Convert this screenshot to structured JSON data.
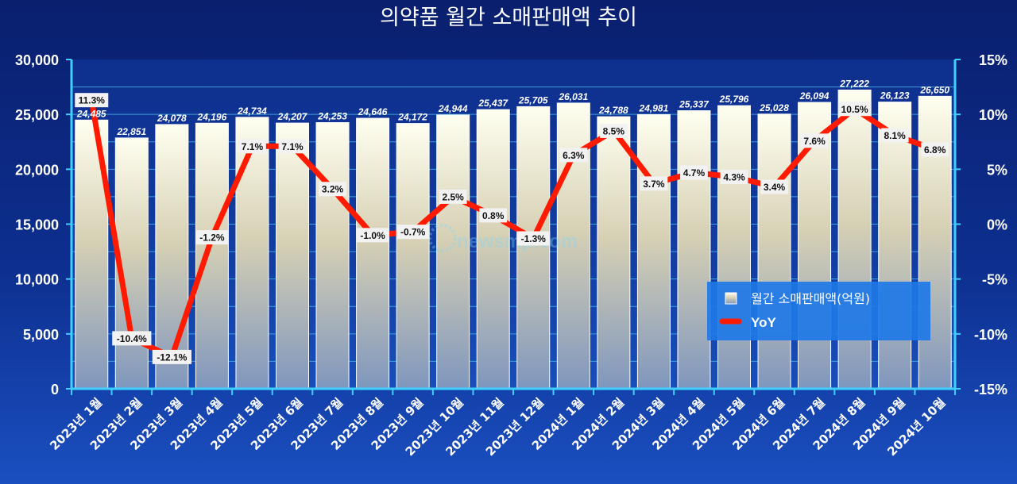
{
  "chart_data": {
    "type": "bar",
    "title": "의약품 월간 소매판매액 추이",
    "categories": [
      "2023년 1월",
      "2023년 2월",
      "2023년 3월",
      "2023년 4월",
      "2023년 5월",
      "2023년 6월",
      "2023년 7월",
      "2023년 8월",
      "2023년 9월",
      "2023년 10월",
      "2023년 11월",
      "2023년 12월",
      "2024년 1월",
      "2024년 2월",
      "2024년 3월",
      "2024년 4월",
      "2024년 5월",
      "2024년 6월",
      "2024년 7월",
      "2024년 8월",
      "2024년 9월",
      "2024년 10월"
    ],
    "series": [
      {
        "name": "월간 소매판매액(억원)",
        "type": "bar",
        "axis": "left",
        "values": [
          24485,
          22851,
          24078,
          24196,
          24734,
          24207,
          24253,
          24646,
          24172,
          24944,
          25437,
          25705,
          26031,
          24788,
          24981,
          25337,
          25796,
          25028,
          26094,
          27222,
          26123,
          26650
        ],
        "labels": [
          "24,485",
          "22,851",
          "24,078",
          "24,196",
          "24,734",
          "24,207",
          "24,253",
          "24,646",
          "24,172",
          "24,944",
          "25,437",
          "25,705",
          "26,031",
          "24,788",
          "24,981",
          "25,337",
          "25,796",
          "25,028",
          "26,094",
          "27,222",
          "26,123",
          "26,650"
        ]
      },
      {
        "name": "YoY",
        "type": "line",
        "axis": "right",
        "values": [
          11.3,
          -10.4,
          -12.1,
          -1.2,
          7.1,
          7.1,
          3.2,
          -1.0,
          -0.7,
          2.5,
          0.8,
          -1.3,
          6.3,
          8.5,
          3.7,
          4.7,
          4.3,
          3.4,
          7.6,
          10.5,
          8.1,
          6.8
        ],
        "labels": [
          "11.3%",
          "-10.4%",
          "-12.1%",
          "-1.2%",
          "7.1%",
          "7.1%",
          "3.2%",
          "-1.0%",
          "-0.7%",
          "2.5%",
          "0.8%",
          "-1.3%",
          "6.3%",
          "8.5%",
          "3.7%",
          "4.7%",
          "4.3%",
          "3.4%",
          "7.6%",
          "10.5%",
          "8.1%",
          "6.8%"
        ]
      }
    ],
    "y_left": {
      "min": 0,
      "max": 30000,
      "ticks": [
        "0",
        "5,000",
        "10,000",
        "15,000",
        "20,000",
        "25,000",
        "30,000"
      ]
    },
    "y_right": {
      "min": -15,
      "max": 15,
      "ticks": [
        "-15%",
        "-10%",
        "-5%",
        "0%",
        "5%",
        "10%",
        "15%"
      ]
    },
    "grid": true,
    "legend": {
      "placement": "right-middle",
      "items": [
        "월간 소매판매액(억원)",
        "YoY"
      ]
    },
    "watermark": "newsmp.com",
    "colors": {
      "line": "#ff1a00",
      "axis": "#3fd0ff",
      "bar_top": "#ffffe8",
      "bar_bottom": "#8aa0c0",
      "legend_bg": "#1e78e6"
    }
  }
}
